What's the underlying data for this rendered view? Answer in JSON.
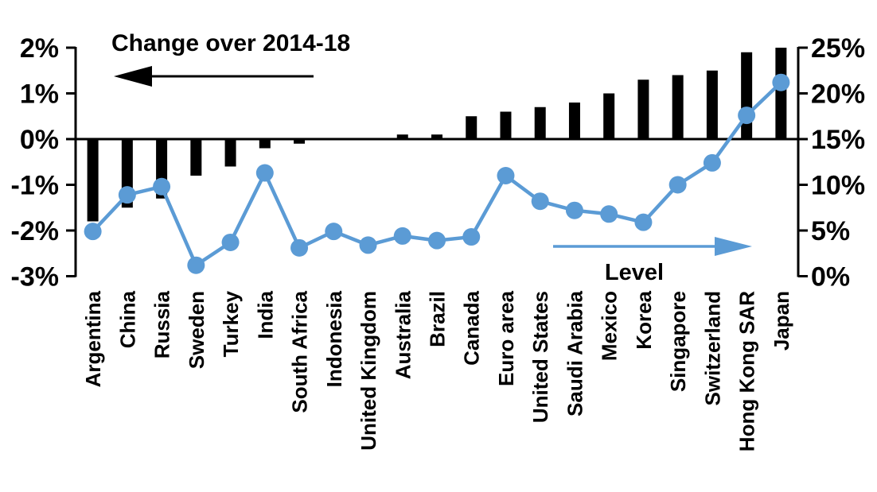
{
  "chart_data": {
    "type": "bar",
    "subtype": "bar-line-combo",
    "categories": [
      "Argentina",
      "China",
      "Russia",
      "Sweden",
      "Turkey",
      "India",
      "South Africa",
      "Indonesia",
      "United Kingdom",
      "Australia",
      "Brazil",
      "Canada",
      "Euro area",
      "United States",
      "Saudi Arabia",
      "Mexico",
      "Korea",
      "Singapore",
      "Switzerland",
      "Hong Kong SAR",
      "Japan"
    ],
    "series": [
      {
        "name": "Change over 2014-18",
        "type": "bar",
        "axis": "left",
        "color": "#000000",
        "values": [
          -1.8,
          -1.5,
          -1.3,
          -0.8,
          -0.6,
          -0.2,
          -0.1,
          0.0,
          0.0,
          0.1,
          0.1,
          0.5,
          0.6,
          0.7,
          0.8,
          1.0,
          1.3,
          1.4,
          1.5,
          1.9,
          2.0
        ]
      },
      {
        "name": "Level",
        "type": "line",
        "axis": "right",
        "color": "#5b9bd5",
        "values": [
          4.9,
          8.9,
          9.8,
          1.2,
          3.7,
          11.3,
          3.1,
          4.9,
          3.4,
          4.4,
          3.9,
          4.3,
          11.0,
          8.2,
          7.2,
          6.8,
          5.9,
          10.0,
          12.4,
          17.6,
          21.2
        ]
      }
    ],
    "left_axis": {
      "min": -3,
      "max": 2,
      "tick_values": [
        2,
        1,
        0,
        -1,
        -2,
        -3
      ],
      "tick_labels": [
        "2%",
        "1%",
        "0%",
        "-1%",
        "-2%",
        "-3%"
      ]
    },
    "right_axis": {
      "min": 0,
      "max": 25,
      "tick_values": [
        25,
        20,
        15,
        10,
        5,
        0
      ],
      "tick_labels": [
        "25%",
        "20%",
        "15%",
        "10%",
        "5%",
        "0%"
      ]
    },
    "annotations": {
      "change_label": "Change over 2014-18",
      "change_arrow_direction": "left",
      "level_label": "Level",
      "level_arrow_direction": "right"
    },
    "layout": {
      "grid": "off",
      "legend": "none",
      "bar_color": "#000000",
      "line_color": "#5b9bd5",
      "background": "#ffffff"
    }
  }
}
